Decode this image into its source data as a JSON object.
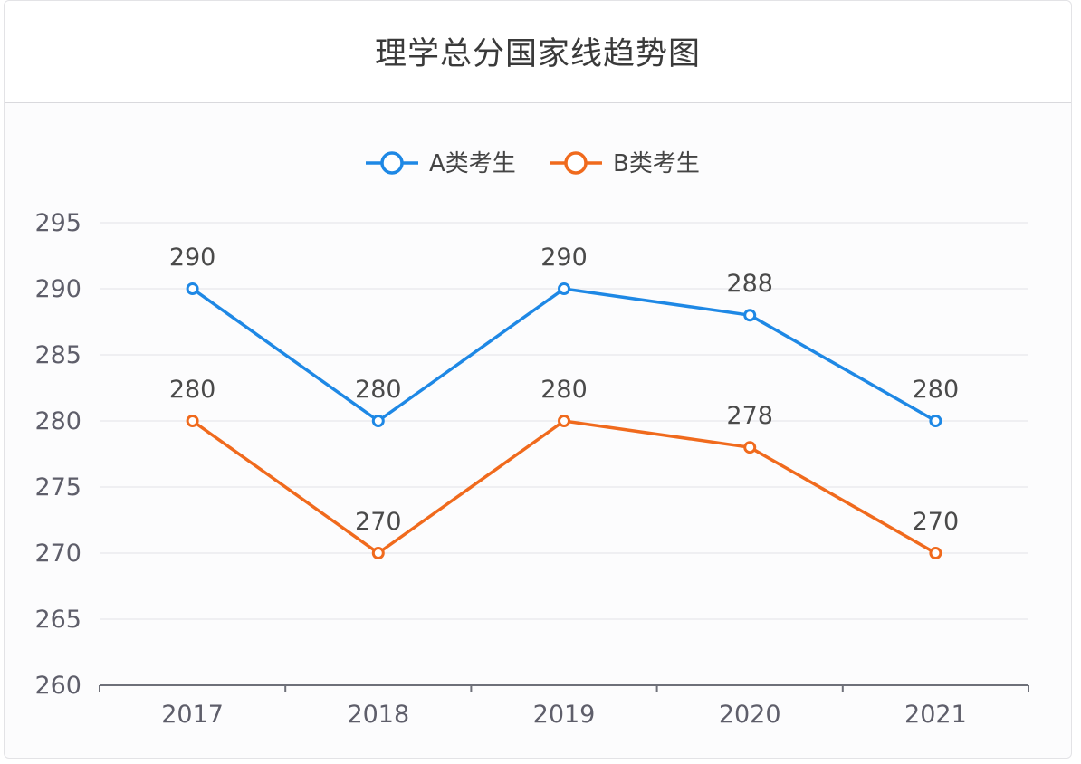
{
  "title": "理学总分国家线趋势图",
  "chart_data": {
    "type": "line",
    "title": "理学总分国家线趋势图",
    "categories": [
      "2017",
      "2018",
      "2019",
      "2020",
      "2021"
    ],
    "series": [
      {
        "name": "A类考生",
        "values": [
          290,
          280,
          290,
          288,
          280
        ],
        "color": "#1e88e5"
      },
      {
        "name": "B类考生",
        "values": [
          280,
          270,
          280,
          278,
          270
        ],
        "color": "#f06a1d"
      }
    ],
    "ylim": [
      260,
      295
    ],
    "yticks": [
      260,
      265,
      270,
      275,
      280,
      285,
      290,
      295
    ],
    "grid": true,
    "legend": "top-center",
    "data_labels": true
  }
}
